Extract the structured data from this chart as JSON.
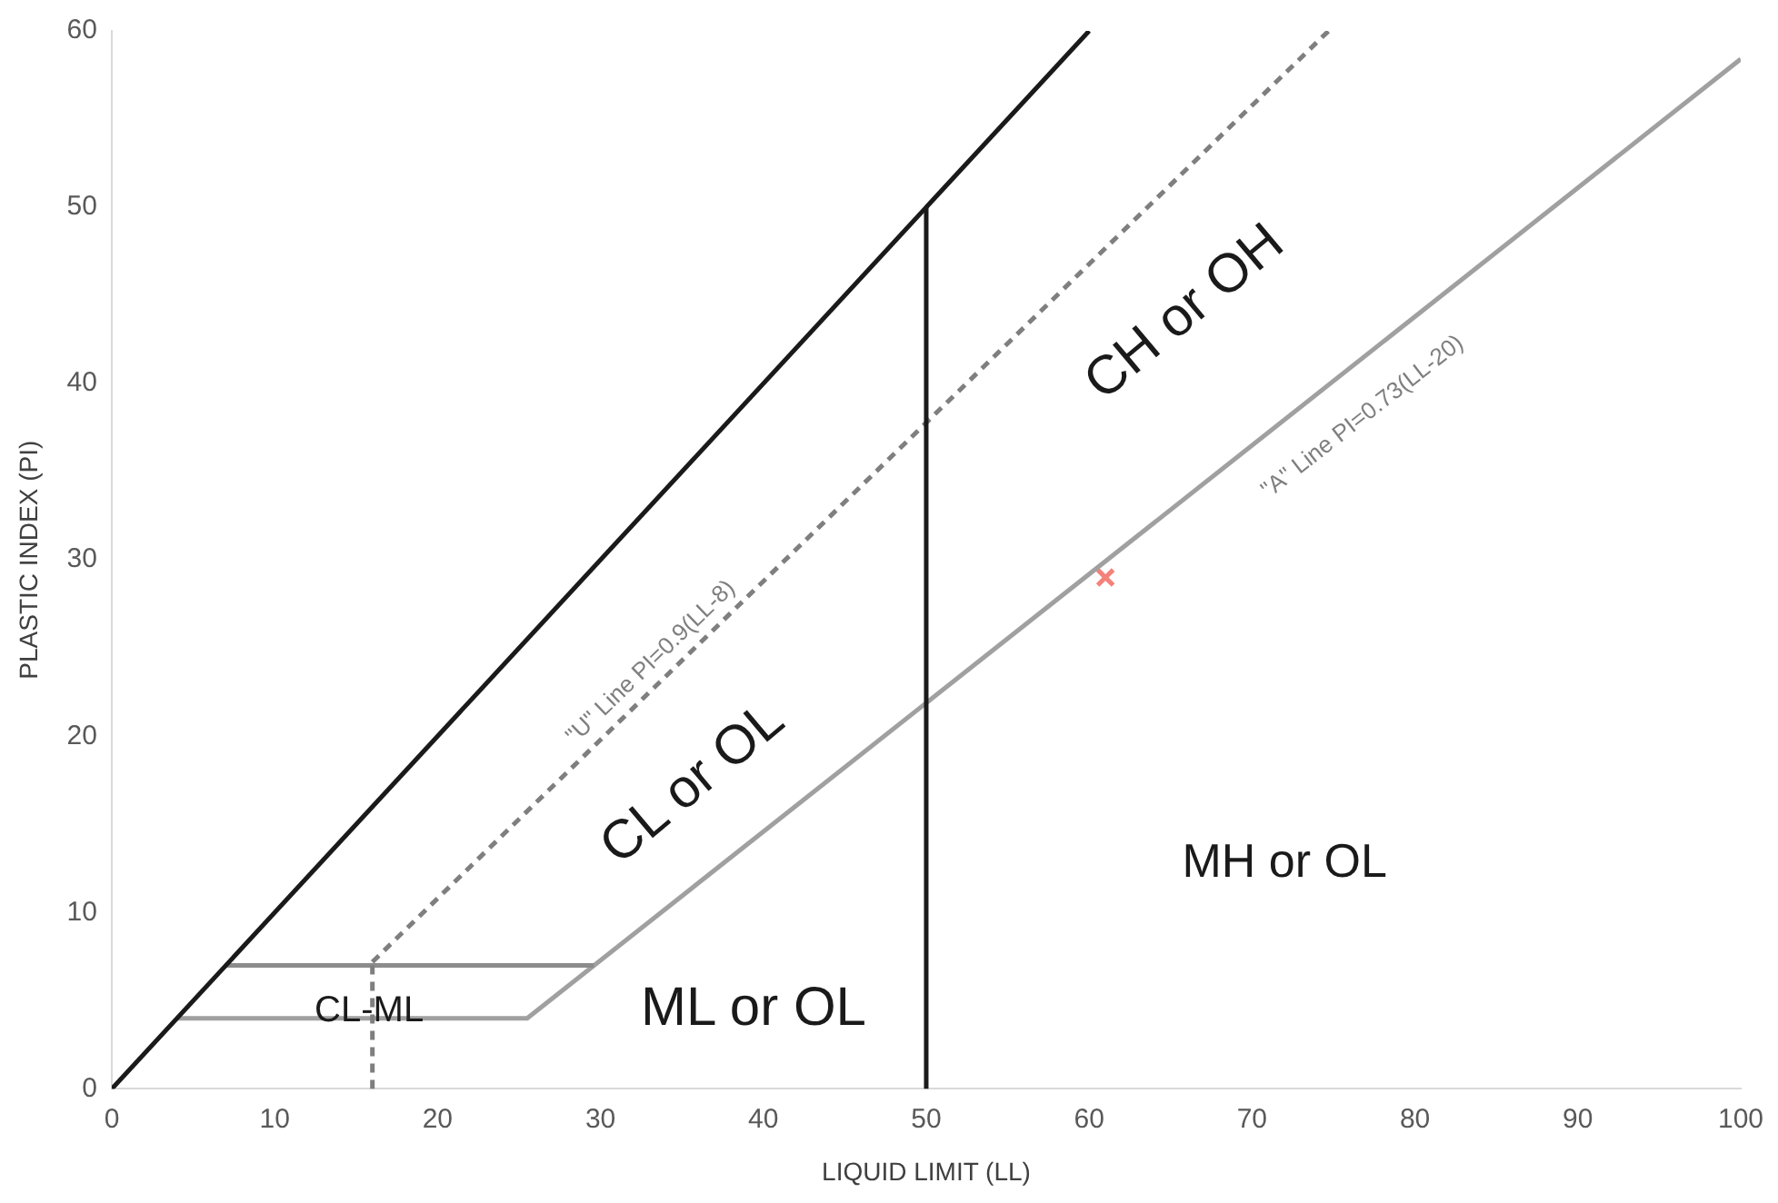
{
  "chart_data": {
    "type": "line",
    "xlabel": "LIQUID LIMIT (LL)",
    "ylabel": "PLASTIC INDEX (PI)",
    "xlim": [
      0,
      100
    ],
    "xticks": [
      0,
      10,
      20,
      30,
      40,
      50,
      60,
      70,
      80,
      90,
      100
    ],
    "ylim": [
      0,
      60
    ],
    "yticks": [
      0,
      10,
      20,
      30,
      40,
      50,
      60
    ],
    "grid": false,
    "legend": false,
    "marker": "none",
    "series": [
      {
        "color": "#1a1a1a",
        "x": [
          0,
          60
        ],
        "values": [
          0,
          60
        ]
      },
      {
        "color": "#1a1a1a",
        "x": [
          50,
          50
        ],
        "values": [
          0,
          50
        ]
      },
      {
        "color": "#7f7f7f",
        "line_style": "dashed",
        "x": [
          16,
          74.7
        ],
        "values": [
          7.2,
          60
        ]
      },
      {
        "color": "#7f7f7f",
        "line_style": "dashed",
        "x": [
          16,
          16
        ],
        "values": [
          0,
          7.2
        ]
      },
      {
        "color": "#8c8c8c",
        "x": [
          7,
          29.6
        ],
        "values": [
          7,
          7
        ]
      },
      {
        "color": "#a0a0a0",
        "x": [
          4,
          25.5,
          100
        ],
        "values": [
          4,
          4,
          58.4
        ]
      },
      {
        "type": "scatter",
        "color": "#f4817a",
        "marker": "cross",
        "x": [
          61
        ],
        "values": [
          29
        ]
      }
    ],
    "annotations": [
      "\"U\" Line PI=0.9(LL-8)",
      "\"A\" Line PI=0.73(LL-20)",
      "CH or OH",
      "CL or OL",
      "ML or OL",
      "MH or OL",
      "CL-ML"
    ]
  }
}
